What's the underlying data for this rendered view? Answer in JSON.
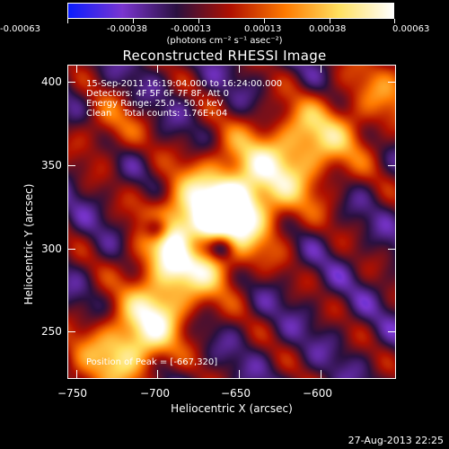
{
  "colorbar": {
    "tick_labels": [
      "-0.00063",
      "-0.00038",
      "-0.00013",
      "0.00013",
      "0.00038",
      "0.00063"
    ],
    "units": "(photons cm⁻² s⁻¹ asec⁻²)",
    "colors": [
      "#0a1cff",
      "#7a35d0",
      "#2a1040",
      "#b01000",
      "#ff7a00",
      "#ffe060",
      "#ffffff"
    ]
  },
  "title": "Reconstructed RHESSI Image",
  "info": {
    "time": "15-Sep-2011 16:19:04.000 to 16:24:00.000",
    "detectors": "Detectors: 4F 5F 6F 7F 8F, Att 0",
    "energy": "Energy Range: 25.0 - 50.0 keV",
    "clean": "Clean    Total counts: 1.76E+04",
    "peak": "Position of Peak = [-667,320]"
  },
  "axes": {
    "xlabel": "Heliocentric X (arcsec)",
    "ylabel": "Heliocentric Y (arcsec)",
    "xtick_labels": [
      "−750",
      "−700",
      "−650",
      "−600"
    ],
    "ytick_labels": [
      "400",
      "350",
      "300",
      "250"
    ],
    "xlim": [
      -756,
      -634
    ],
    "ylim": [
      216,
      412
    ]
  },
  "timestamp": "27-Aug-2013 22:25"
}
